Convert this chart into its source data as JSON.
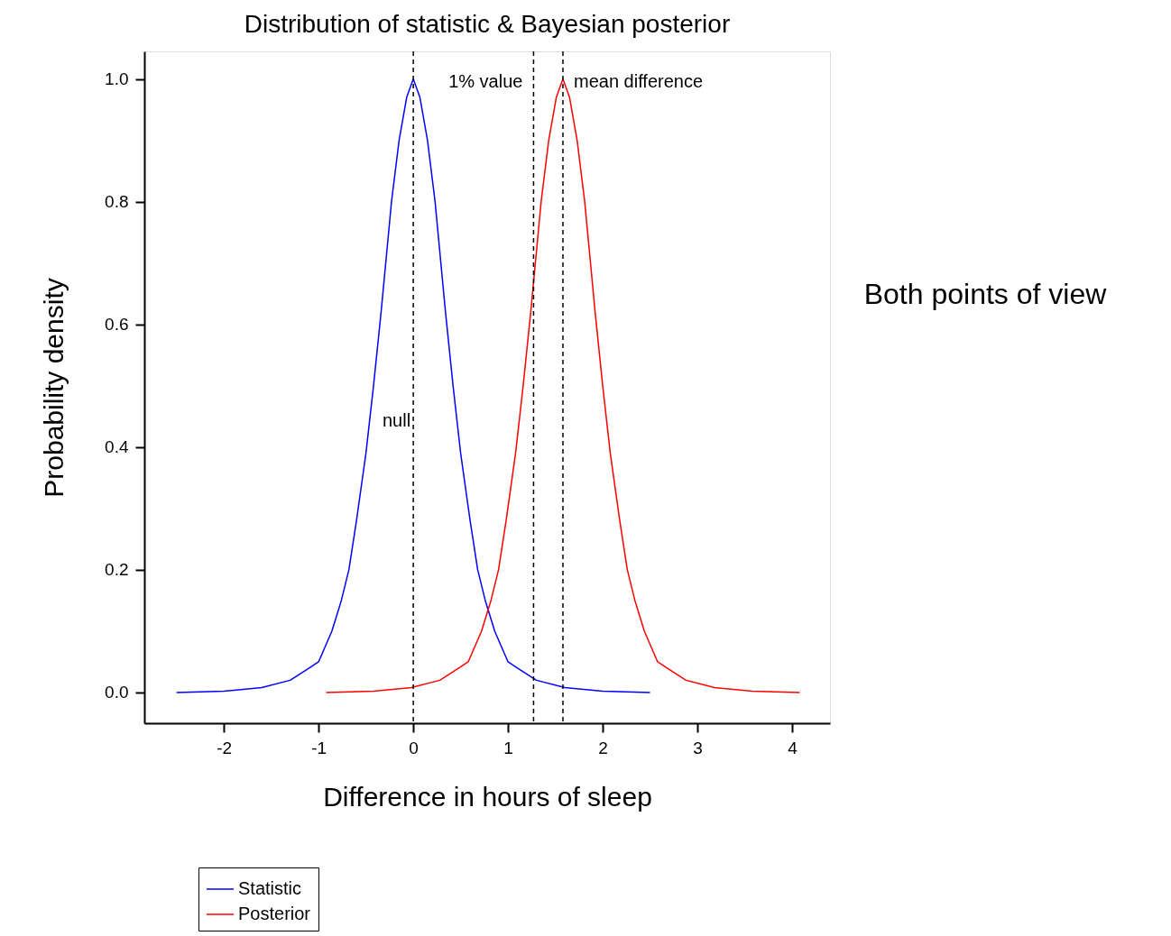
{
  "chart_data": {
    "type": "line",
    "title": "Distribution of statistic & Bayesian posterior",
    "xlabel": "Difference in hours of sleep",
    "ylabel": "Probability density",
    "series": [
      {
        "name": "Statistic",
        "color": "#0000ff",
        "x": [
          -2.5,
          -2.0,
          -1.6,
          -1.3,
          -1.1,
          -1.0,
          -0.86,
          -0.76,
          -0.68,
          -0.6,
          -0.5,
          -0.42,
          -0.34,
          -0.23,
          -0.15,
          -0.07,
          0,
          0.07,
          0.15,
          0.23,
          0.34,
          0.42,
          0.5,
          0.6,
          0.68,
          0.76,
          0.86,
          1.0,
          1.1,
          1.3,
          1.6,
          2.0,
          2.5
        ],
        "values": [
          0.0,
          0.002,
          0.008,
          0.02,
          0.04,
          0.05,
          0.1,
          0.15,
          0.2,
          0.28,
          0.39,
          0.5,
          0.62,
          0.8,
          0.9,
          0.97,
          1.0,
          0.97,
          0.9,
          0.8,
          0.62,
          0.5,
          0.39,
          0.28,
          0.2,
          0.15,
          0.1,
          0.05,
          0.04,
          0.02,
          0.008,
          0.002,
          0.0
        ]
      },
      {
        "name": "Posterior",
        "color": "#ff0000",
        "x": [
          -0.92,
          -0.42,
          -0.02,
          0.28,
          0.48,
          0.58,
          0.72,
          0.82,
          0.9,
          0.98,
          1.08,
          1.16,
          1.24,
          1.35,
          1.43,
          1.51,
          1.58,
          1.65,
          1.73,
          1.81,
          1.92,
          2.0,
          2.08,
          2.18,
          2.26,
          2.34,
          2.44,
          2.58,
          2.68,
          2.88,
          3.18,
          3.58,
          4.08
        ],
        "values": [
          0.0,
          0.002,
          0.008,
          0.02,
          0.04,
          0.05,
          0.1,
          0.15,
          0.2,
          0.28,
          0.39,
          0.5,
          0.62,
          0.8,
          0.9,
          0.97,
          1.0,
          0.97,
          0.9,
          0.8,
          0.62,
          0.5,
          0.39,
          0.28,
          0.2,
          0.15,
          0.1,
          0.05,
          0.04,
          0.02,
          0.008,
          0.002,
          0.0
        ]
      }
    ],
    "xlim": [
      -2.84,
      4.4
    ],
    "xticks": [
      -2,
      -1,
      0,
      1,
      2,
      3,
      4
    ],
    "ylim": [
      -0.05,
      1.045
    ],
    "yticks": [
      {
        "value": 0,
        "label": "0.0"
      },
      0.2,
      0.4,
      0.6,
      0.8,
      {
        "value": 1,
        "label": "1.0"
      }
    ],
    "ref_lines": [
      {
        "axis": "x",
        "value": 0,
        "label": "null",
        "color": "#000000",
        "line_style": "dashed"
      },
      {
        "axis": "x",
        "value": 1.27,
        "label": "1% value",
        "color": "#000000",
        "line_style": "dashed"
      },
      {
        "axis": "x",
        "value": 1.58,
        "label": "mean difference",
        "color": "#000000",
        "line_style": "dashed"
      }
    ],
    "annotations": [
      "Both points of view"
    ],
    "legend": "bottom left",
    "grid": false,
    "marker": "none",
    "line_style": "solid"
  }
}
